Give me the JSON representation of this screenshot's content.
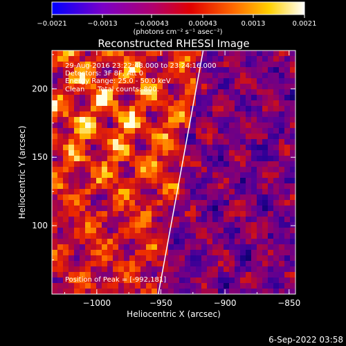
{
  "colorbar": {
    "ticks": [
      "-0.0021",
      "-0.0013",
      "-0.00043",
      "0.00043",
      "0.0013",
      "0.0021"
    ],
    "units_label": "(photons cm⁻² s⁻¹ asec⁻²)",
    "range": [
      -0.0021,
      0.0021
    ]
  },
  "title": "Reconstructed RHESSI Image",
  "info": {
    "time_range": "29-Aug-2016 23:22:48.000 to 23:24:16.000",
    "detectors": "Detectors: 3F 8F, Att 0",
    "energy": "Energy Range: 25.0 - 50.0 keV",
    "method": "Clean",
    "total_counts": "Total counts: 800."
  },
  "peak_label": "Position of Peak = [-992,181]",
  "footer_date": "6-Sep-2022 03:58",
  "colors": {
    "accent_line": "#ffffff"
  },
  "chart_data": {
    "type": "heatmap",
    "title": "Reconstructed RHESSI Image",
    "xlabel": "Heliocentric X (arcsec)",
    "ylabel": "Heliocentric Y (arcsec)",
    "xlim": [
      -1035,
      -845
    ],
    "ylim": [
      50,
      228
    ],
    "x_ticks": [
      {
        "value": -1000,
        "label": "−1000"
      },
      {
        "value": -950,
        "label": "−950"
      },
      {
        "value": -900,
        "label": "−900"
      },
      {
        "value": -850,
        "label": "−850"
      }
    ],
    "y_ticks": [
      {
        "value": 100,
        "label": "100"
      },
      {
        "value": 150,
        "label": "150"
      },
      {
        "value": 200,
        "label": "200"
      }
    ],
    "colormap": "red-temperature (black-blue-purple-red-orange-yellow-white)",
    "limb_line": [
      [
        -952,
        50
      ],
      [
        -917,
        228
      ]
    ],
    "peak": [
      -992,
      181
    ],
    "grid": false
  }
}
